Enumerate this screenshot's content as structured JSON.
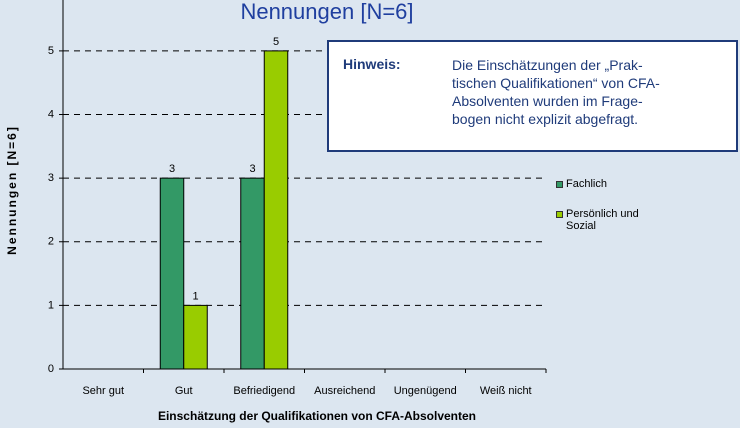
{
  "chart_data": {
    "type": "bar",
    "title": "Nennungen [N=6]",
    "x_label": "Einschätzung der Qualifikationen von CFA-Absolventen",
    "y_label": "Nennungen [N=6]",
    "categories": [
      "Sehr gut",
      "Gut",
      "Befriedigend",
      "Ausreichend",
      "Ungenügend",
      "Weiß nicht"
    ],
    "series": [
      {
        "name": "Fachlich",
        "color": "#339966",
        "values": [
          0,
          3,
          3,
          0,
          0,
          0
        ]
      },
      {
        "name": "Persönlich und Sozial",
        "color": "#99cc00",
        "values": [
          0,
          1,
          5,
          0,
          0,
          0
        ]
      }
    ],
    "ylim": [
      0,
      5.8
    ],
    "yticks": [
      0,
      1,
      2,
      3,
      4,
      5
    ],
    "grid": true,
    "legend": "right",
    "note": {
      "heading": "Hinweis:",
      "lines": [
        "Die Einschätzungen der „Prak-",
        "tischen Qualifikationen“ von CFA-",
        "Absolventen wurden im Frage-",
        "bogen nicht explizit abgefragt."
      ]
    }
  }
}
